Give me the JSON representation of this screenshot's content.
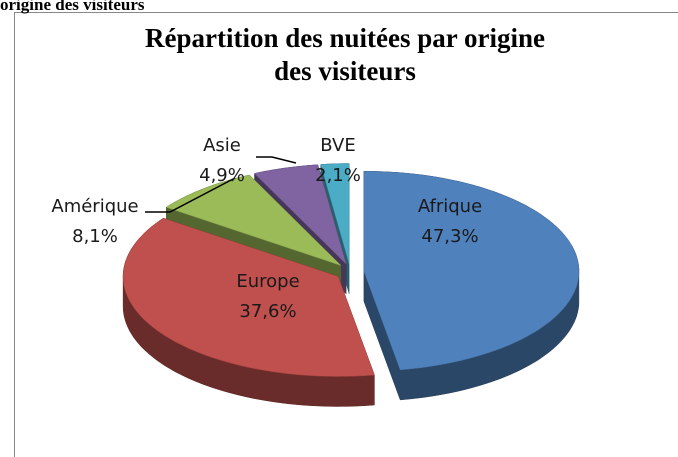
{
  "caption": "origine des visiteurs",
  "chart_data": {
    "type": "pie",
    "title": [
      "Répartition des nuitées par origine",
      "des visiteurs"
    ],
    "categories": [
      "Afrique",
      "Europe",
      "Amérique",
      "Asie",
      "BVE"
    ],
    "values": [
      47.3,
      37.6,
      8.1,
      4.9,
      2.1
    ],
    "value_labels": [
      "47,3%",
      "37,6%",
      "8,1%",
      "4,9%",
      "2,1%"
    ],
    "colors": [
      "#4f81bd",
      "#c0504d",
      "#9bbb59",
      "#8064a2",
      "#4bacc6"
    ]
  }
}
